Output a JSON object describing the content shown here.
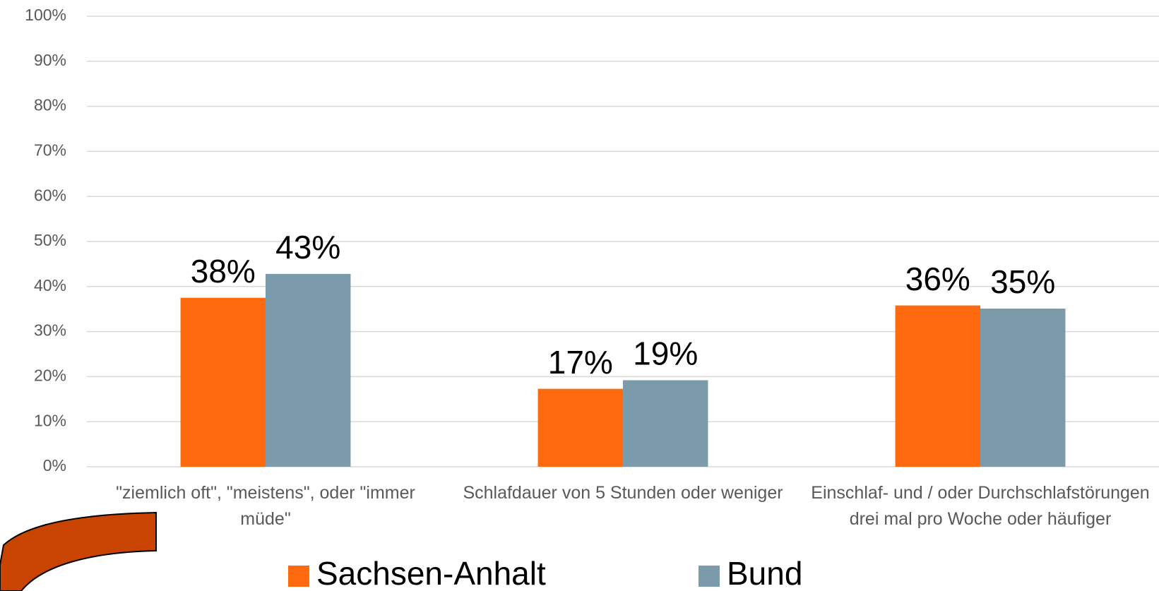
{
  "chart_data": {
    "type": "bar",
    "categories": [
      "\"ziemlich oft\", \"meistens\", oder \"immer müde\"",
      "Schlafdauer von 5 Stunden oder weniger",
      "Einschlaf- und / oder Durchschlafstörungen drei mal pro Woche oder häufiger"
    ],
    "series": [
      {
        "name": "Sachsen-Anhalt",
        "color": "#ff6a0e",
        "values": [
          37.5,
          17.3,
          35.8
        ],
        "value_labels": [
          "38%",
          "17%",
          "36%"
        ]
      },
      {
        "name": "Bund",
        "color": "#7b9baa",
        "values": [
          42.8,
          19.2,
          35.1
        ],
        "value_labels": [
          "43%",
          "19%",
          "35%"
        ]
      }
    ],
    "ylim": [
      0,
      100
    ],
    "yticks": [
      {
        "value": 0,
        "label": "0%"
      },
      {
        "value": 10,
        "label": "10%"
      },
      {
        "value": 20,
        "label": "20%"
      },
      {
        "value": 30,
        "label": "30%"
      },
      {
        "value": 40,
        "label": "40%"
      },
      {
        "value": 50,
        "label": "50%"
      },
      {
        "value": 60,
        "label": "60%"
      },
      {
        "value": 70,
        "label": "70%"
      },
      {
        "value": 80,
        "label": "80%"
      },
      {
        "value": 90,
        "label": "90%"
      },
      {
        "value": 100,
        "label": "100%"
      }
    ],
    "grid": true,
    "legend": "bottom"
  }
}
